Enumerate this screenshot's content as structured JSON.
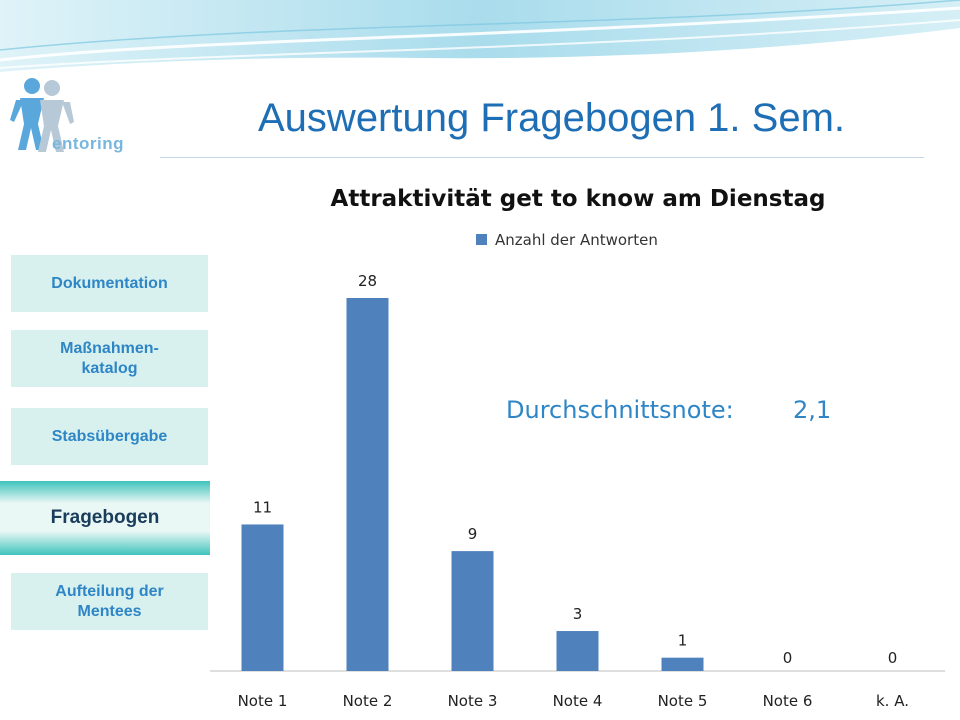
{
  "header": {
    "title": "Auswertung Fragebogen 1. Sem.",
    "logo_text": "entoring"
  },
  "nav": {
    "items": [
      {
        "label": "Dokumentation",
        "active": false
      },
      {
        "label": "Maßnahmen-\nkatalog",
        "active": false
      },
      {
        "label": "Stabsübergabe",
        "active": false
      },
      {
        "label": "Fragebogen",
        "active": true
      },
      {
        "label": "Aufteilung der Mentees",
        "active": false
      }
    ]
  },
  "colors": {
    "bar": "#4f81bd",
    "title_blue": "#1e6eb5",
    "nav_text": "#2e86c6",
    "nav_bg": "#d8f1ee",
    "average_text": "#2e86c6"
  },
  "chart_data": {
    "type": "bar",
    "title": "Attraktivität get to know am Dienstag",
    "categories": [
      "Note 1",
      "Note 2",
      "Note 3",
      "Note 4",
      "Note 5",
      "Note 6",
      "k. A."
    ],
    "series": [
      {
        "name": "Anzahl der Antworten",
        "values": [
          11,
          28,
          9,
          3,
          1,
          0,
          0
        ]
      }
    ],
    "data_labels": [
      "11",
      "28",
      "9",
      "3",
      "1",
      "0",
      "0"
    ],
    "ylim": [
      0,
      28
    ],
    "legend": "top",
    "grid": false,
    "annotation": {
      "label": "Durchschnittsnote:",
      "value": "2,1"
    }
  }
}
